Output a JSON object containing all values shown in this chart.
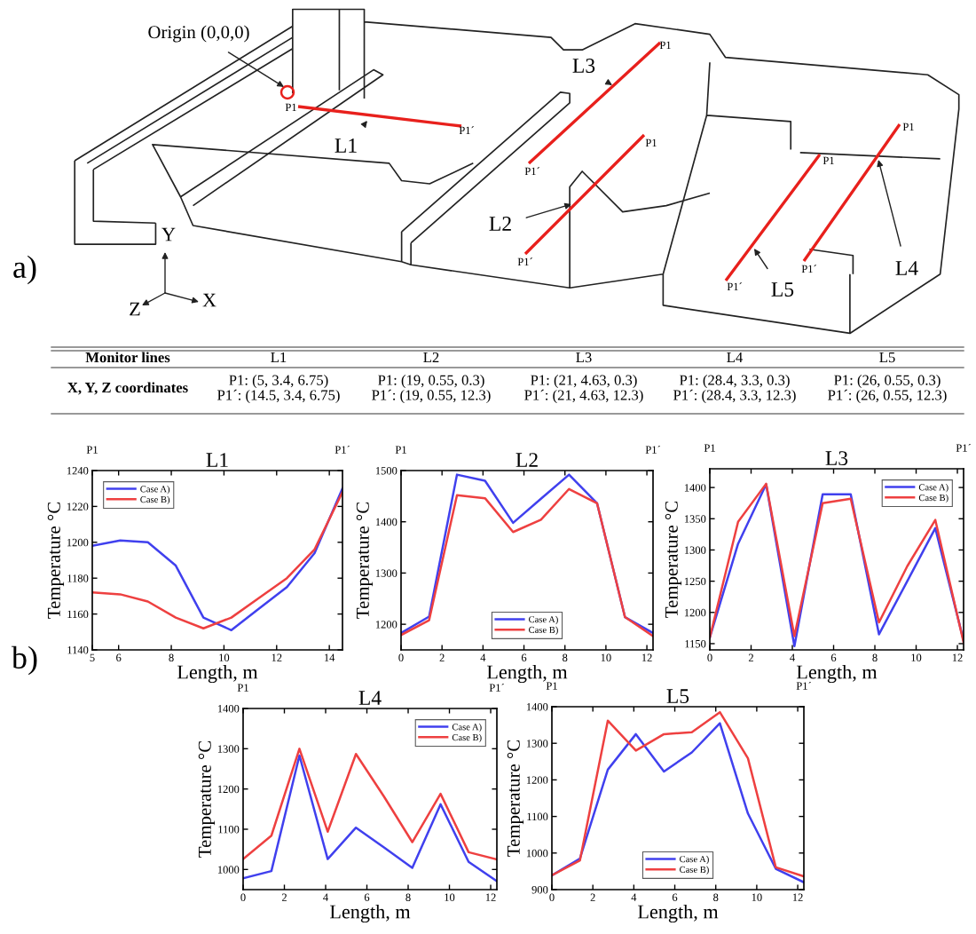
{
  "chart_data": [
    {
      "type": "other",
      "annotations": [
        "Origin (0,0,0)",
        "P1",
        "P1´",
        "L1",
        "P1",
        "P1´",
        "L2",
        "P1",
        "P1´",
        "L3",
        "P1",
        "P1´",
        "L4",
        "P1",
        "P1´",
        "L5",
        "Y",
        "X",
        "Z",
        "a)",
        "b)"
      ]
    },
    {
      "type": "other",
      "annotations": [
        "Monitor lines"
      ],
      "categories": [
        "L1",
        "L2",
        "L3",
        "L4",
        "L5"
      ],
      "y_categories": [
        "X, Y, Z coordinates"
      ],
      "cell_labels": [
        [
          "P1: (5, 3.4, 6.75)\nP1´: (14.5, 3.4, 6.75)",
          "P1: (19, 0.55, 0.3)\nP1´: (19, 0.55, 12.3)",
          "P1: (21, 4.63, 0.3)\nP1´: (21, 4.63, 12.3)",
          "P1: (28.4, 3.3, 0.3)\nP1´: (28.4, 3.3, 12.3)",
          "P1: (26, 0.55, 0.3)\nP1´: (26, 0.55, 12.3)"
        ]
      ]
    },
    {
      "type": "line",
      "title": "L1",
      "xlabel": "Length, m",
      "ylabel": "Temperature °C",
      "annotations": [
        "P1",
        "P1´"
      ],
      "x": [
        5,
        6.06,
        7.11,
        8.17,
        9.22,
        10.28,
        11.33,
        12.39,
        13.44,
        14.5
      ],
      "xlim": [
        5,
        14.5
      ],
      "xticks": [
        5,
        6,
        8,
        10,
        12,
        14
      ],
      "ylim": [
        1140,
        1240
      ],
      "yticks": [
        1140,
        1160,
        1180,
        1200,
        1220,
        1240
      ],
      "legend": "top left",
      "series": [
        {
          "name": "Case A)",
          "color": "#4040ee",
          "values": [
            1198,
            1201,
            1200,
            1187,
            1158,
            1151,
            1163,
            1175,
            1194,
            1230
          ]
        },
        {
          "name": "Case B)",
          "color": "#ee4040",
          "values": [
            1172,
            1171,
            1167,
            1158,
            1152,
            1158,
            1169,
            1180,
            1196,
            1228
          ]
        }
      ]
    },
    {
      "type": "line",
      "title": "L2",
      "xlabel": "Length, m",
      "ylabel": "Temperature °C",
      "annotations": [
        "P1",
        "P1´"
      ],
      "x": [
        0,
        1.37,
        2.73,
        4.1,
        5.47,
        6.83,
        8.2,
        9.57,
        10.93,
        12.3
      ],
      "xlim": [
        0,
        12.3
      ],
      "xticks": [
        0,
        2,
        4,
        6,
        8,
        10,
        12
      ],
      "ylim": [
        1150,
        1500
      ],
      "yticks": [
        1200,
        1300,
        1400,
        1500
      ],
      "legend": "bottom",
      "series": [
        {
          "name": "Case A)",
          "color": "#4040ee",
          "values": [
            1183,
            1215,
            1492,
            1480,
            1398,
            1445,
            1492,
            1436,
            1214,
            1183
          ]
        },
        {
          "name": "Case B)",
          "color": "#ee4040",
          "values": [
            1179,
            1208,
            1452,
            1446,
            1380,
            1404,
            1464,
            1436,
            1214,
            1177
          ]
        }
      ]
    },
    {
      "type": "line",
      "title": "L3",
      "xlabel": "Length, m",
      "ylabel": "Temperature °C",
      "annotations": [
        "P1",
        "P1´"
      ],
      "x": [
        0,
        1.37,
        2.73,
        4.1,
        5.47,
        6.83,
        8.2,
        9.57,
        10.93,
        12.3
      ],
      "xlim": [
        0,
        12.3
      ],
      "xticks": [
        0,
        2,
        4,
        6,
        8,
        10,
        12
      ],
      "ylim": [
        1140,
        1430
      ],
      "yticks": [
        1150,
        1200,
        1250,
        1300,
        1350,
        1400
      ],
      "legend": "top right",
      "series": [
        {
          "name": "Case A)",
          "color": "#4040ee",
          "values": [
            1160,
            1310,
            1405,
            1146,
            1389,
            1389,
            1165,
            1250,
            1335,
            1155
          ]
        },
        {
          "name": "Case B)",
          "color": "#ee4040",
          "values": [
            1160,
            1345,
            1406,
            1162,
            1375,
            1382,
            1184,
            1274,
            1348,
            1152
          ]
        }
      ]
    },
    {
      "type": "line",
      "title": "L4",
      "xlabel": "Length, m",
      "ylabel": "Temperature °C",
      "annotations": [
        "P1",
        "P1´"
      ],
      "x": [
        0,
        1.37,
        2.73,
        4.1,
        5.47,
        6.83,
        8.2,
        9.57,
        10.93,
        12.3
      ],
      "xlim": [
        0,
        12.3
      ],
      "xticks": [
        0,
        2,
        4,
        6,
        8,
        10,
        12
      ],
      "ylim": [
        950,
        1400
      ],
      "yticks": [
        1000,
        1100,
        1200,
        1300,
        1400
      ],
      "legend": "top right",
      "series": [
        {
          "name": "Case A)",
          "color": "#4040ee",
          "values": [
            978,
            996,
            1283,
            1026,
            1104,
            1055,
            1004,
            1162,
            1019,
            971
          ]
        },
        {
          "name": "Case B)",
          "color": "#ee4040",
          "values": [
            1026,
            1084,
            1300,
            1094,
            1287,
            1181,
            1068,
            1188,
            1043,
            1025
          ]
        }
      ]
    },
    {
      "type": "line",
      "title": "L5",
      "xlabel": "Length, m",
      "ylabel": "Temperature °C",
      "annotations": [
        "P1",
        "P1´"
      ],
      "x": [
        0,
        1.37,
        2.73,
        4.1,
        5.47,
        6.83,
        8.2,
        9.57,
        10.93,
        12.3
      ],
      "xlim": [
        0,
        12.3
      ],
      "xticks": [
        0,
        2,
        4,
        6,
        8,
        10,
        12
      ],
      "ylim": [
        900,
        1400
      ],
      "yticks": [
        900,
        1000,
        1100,
        1200,
        1300,
        1400
      ],
      "legend": "bottom",
      "series": [
        {
          "name": "Case A)",
          "color": "#4040ee",
          "values": [
            939,
            985,
            1228,
            1325,
            1223,
            1275,
            1355,
            1108,
            957,
            920
          ]
        },
        {
          "name": "Case B)",
          "color": "#ee4040",
          "values": [
            939,
            980,
            1362,
            1280,
            1325,
            1330,
            1385,
            1259,
            961,
            936
          ]
        }
      ]
    }
  ]
}
